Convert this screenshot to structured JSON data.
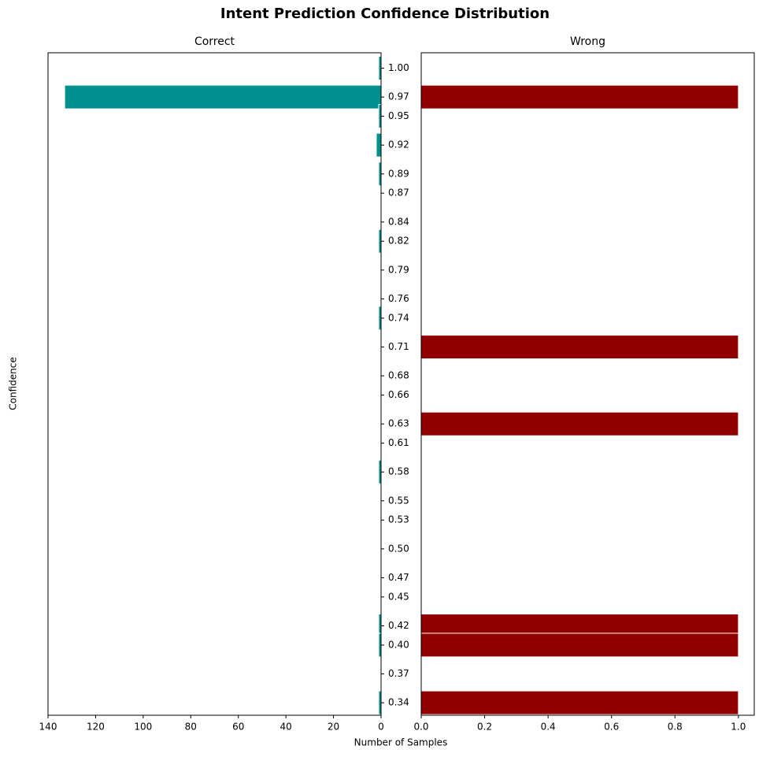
{
  "title": "Intent Prediction Confidence Distribution",
  "xlabel": "Number of Samples",
  "ylabel": "Confidence",
  "chart_data": [
    {
      "type": "barh",
      "title": "Correct",
      "color": "#009090",
      "x_inverted": true,
      "ytick_side": "right",
      "y": [
        1.0,
        0.97,
        0.95,
        0.92,
        0.89,
        0.82,
        0.74,
        0.58,
        0.42,
        0.4,
        0.34
      ],
      "values": [
        1,
        133,
        1,
        2,
        1,
        1,
        1,
        1,
        1,
        1,
        1
      ],
      "xlim": [
        0,
        140
      ],
      "xticks": [
        0,
        20,
        40,
        60,
        80,
        100,
        120,
        140
      ],
      "ylim": [
        0.327,
        1.016
      ],
      "yticks": [
        {
          "value": 1.0,
          "label": "1.00"
        },
        0.97,
        0.95,
        0.92,
        0.89,
        0.87,
        0.84,
        0.82,
        0.79,
        0.76,
        0.74,
        0.71,
        0.68,
        0.66,
        0.63,
        0.61,
        0.58,
        0.55,
        0.53,
        {
          "value": 0.5,
          "label": "0.50"
        },
        0.47,
        0.45,
        0.42,
        {
          "value": 0.4,
          "label": "0.40"
        },
        0.37,
        0.34
      ]
    },
    {
      "type": "barh",
      "title": "Wrong",
      "color": "#910000",
      "x_inverted": false,
      "y": [
        0.97,
        0.71,
        0.63,
        0.42,
        0.4,
        0.34
      ],
      "values": [
        1,
        1,
        1,
        1,
        1,
        1
      ],
      "xlim": [
        0,
        1.05
      ],
      "xticks": [
        {
          "value": 0,
          "label": "0.0"
        },
        0.2,
        0.4,
        0.6,
        0.8,
        {
          "value": 1,
          "label": "1.0"
        }
      ],
      "ylim": [
        0.327,
        1.016
      ]
    }
  ]
}
